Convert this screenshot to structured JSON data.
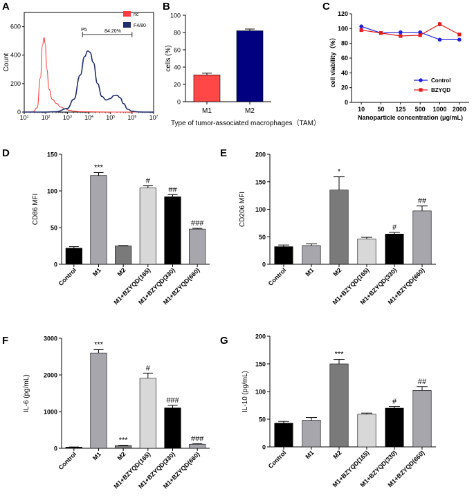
{
  "panel_labels": [
    "A",
    "B",
    "C",
    "D",
    "E",
    "F",
    "G"
  ],
  "chart_data": [
    {
      "panel": "A",
      "type": "line",
      "title": "",
      "xlabel": "",
      "ylabel": "Count",
      "x_ticks": [
        "10^1",
        "10^2",
        "10^3",
        "10^4",
        "10^5",
        "10^6",
        "10^7"
      ],
      "x_log_range": [
        1,
        7
      ],
      "ylim": [
        0,
        700
      ],
      "y_ticks": [
        0,
        200,
        400,
        600
      ],
      "gate_label": "P5",
      "gate_value": "84.20%",
      "gate_range_log": [
        3.7,
        6.0
      ],
      "series": [
        {
          "name": "nc",
          "color": "#ff3b3b",
          "x": [
            1.0,
            1.4,
            1.6,
            1.75,
            1.85,
            1.92,
            1.97,
            2.05,
            2.15,
            2.3,
            2.5,
            2.7,
            2.9,
            3.1,
            3.3,
            3.6,
            4.0,
            4.5,
            5.0,
            6.0,
            7.0
          ],
          "y": [
            0,
            2,
            30,
            240,
            470,
            525,
            480,
            300,
            160,
            90,
            60,
            35,
            22,
            12,
            6,
            3,
            2,
            1,
            0,
            0,
            0
          ]
        },
        {
          "name": "F4/80",
          "color": "#1f2d6b",
          "x": [
            1.0,
            2.0,
            2.5,
            3.0,
            3.3,
            3.6,
            3.8,
            3.95,
            4.05,
            4.2,
            4.4,
            4.6,
            4.8,
            5.0,
            5.15,
            5.3,
            5.45,
            5.6,
            5.8,
            6.0,
            6.3,
            6.6,
            7.0
          ],
          "y": [
            0,
            0,
            3,
            25,
            90,
            260,
            390,
            430,
            420,
            350,
            200,
            110,
            85,
            95,
            115,
            118,
            100,
            60,
            20,
            6,
            1,
            0,
            0
          ]
        }
      ]
    },
    {
      "panel": "B",
      "type": "bar",
      "title": "",
      "xlabel": "Type of tumor-associated macrophages（TAM）",
      "ylabel": "cells (%)",
      "categories": [
        "M1",
        "M2"
      ],
      "values": [
        31,
        82
      ],
      "errors": [
        2,
        2
      ],
      "colors": [
        "#ff4747",
        "#000080"
      ],
      "ylim": [
        0,
        100
      ],
      "y_ticks": [
        0,
        20,
        40,
        60,
        80,
        100
      ]
    },
    {
      "panel": "C",
      "type": "line",
      "title": "",
      "xlabel": "Nanoparticle concentration (μg/mL)",
      "ylabel": "cell viability（%）",
      "categories": [
        "10",
        "50",
        "125",
        "500",
        "1000",
        "2000"
      ],
      "ylim": [
        0,
        120
      ],
      "y_ticks": [
        0,
        20,
        40,
        60,
        80,
        100,
        120
      ],
      "series": [
        {
          "name": "Control",
          "color": "#1f1fd8",
          "marker": "circle",
          "values": [
            103,
            94,
            95,
            95,
            85,
            85
          ],
          "errors": [
            1,
            1,
            1,
            1,
            1,
            1
          ]
        },
        {
          "name": "BZYQD",
          "color": "#e01b1b",
          "marker": "square",
          "values": [
            98,
            94,
            90,
            91,
            106,
            92
          ],
          "errors": [
            1,
            1,
            1,
            1,
            3,
            1
          ]
        }
      ]
    },
    {
      "panel": "D",
      "type": "bar",
      "title": "",
      "xlabel": "",
      "ylabel": "CD86 MFI",
      "categories": [
        "Control",
        "M1",
        "M2",
        "M1+BZYQD(165)",
        "M1+BZYQD(330)",
        "M1+BZYQD(660)"
      ],
      "values": [
        22,
        121,
        25,
        104,
        92,
        48
      ],
      "errors": [
        2,
        4,
        0.5,
        3,
        3,
        1
      ],
      "colors": [
        "#000000",
        "#a6a6ac",
        "#7a7a7a",
        "#d8d8d8",
        "#000000",
        "#a6a6ac"
      ],
      "annotations": [
        "",
        "***",
        "",
        "#",
        "##",
        "###"
      ],
      "ylim": [
        0,
        150
      ],
      "y_ticks": [
        0,
        50,
        100,
        150
      ]
    },
    {
      "panel": "E",
      "type": "bar",
      "title": "",
      "xlabel": "",
      "ylabel": "CD206 MFI",
      "categories": [
        "Control",
        "M1",
        "M2",
        "M1+BZYQD(165)",
        "M1+BZYQD(330)",
        "M1+BZYQD(660)"
      ],
      "values": [
        32,
        34,
        135,
        46,
        55,
        97
      ],
      "errors": [
        3,
        3,
        24,
        3,
        3,
        9
      ],
      "colors": [
        "#000000",
        "#a6a6ac",
        "#7a7a7a",
        "#d8d8d8",
        "#000000",
        "#a6a6ac"
      ],
      "annotations": [
        "",
        "",
        "*",
        "",
        "#",
        "##"
      ],
      "ylim": [
        0,
        200
      ],
      "y_ticks": [
        0,
        50,
        100,
        150,
        200
      ]
    },
    {
      "panel": "F",
      "type": "bar",
      "title": "",
      "xlabel": "",
      "ylabel": "IL-6 (pg/mL)",
      "categories": [
        "Control",
        "M1",
        "M2",
        "M1+BZYQD(165)",
        "M1+BZYQD(330)",
        "M1+BZYQD(660)"
      ],
      "values": [
        30,
        2600,
        75,
        1910,
        1100,
        110
      ],
      "errors": [
        5,
        90,
        10,
        140,
        70,
        15
      ],
      "colors": [
        "#000000",
        "#a6a6ac",
        "#7a7a7a",
        "#d8d8d8",
        "#000000",
        "#a6a6ac"
      ],
      "annotations": [
        "",
        "***",
        "***",
        "#",
        "###",
        "###"
      ],
      "ylim": [
        0,
        3000
      ],
      "y_ticks": [
        0,
        1000,
        2000,
        3000
      ]
    },
    {
      "panel": "G",
      "type": "bar",
      "title": "",
      "xlabel": "",
      "ylabel": "IL-10 (pg/mL)",
      "categories": [
        "Control",
        "M1",
        "M2",
        "M1+BZYQD(165)",
        "M1+BZYQD(330)",
        "M1+BZYQD(660)"
      ],
      "values": [
        43,
        48,
        150,
        59,
        70,
        102
      ],
      "errors": [
        3,
        5,
        8,
        2,
        3,
        7
      ],
      "colors": [
        "#000000",
        "#a6a6ac",
        "#7a7a7a",
        "#d8d8d8",
        "#000000",
        "#a6a6ac"
      ],
      "annotations": [
        "",
        "",
        "***",
        "",
        "#",
        "##"
      ],
      "ylim": [
        0,
        200
      ],
      "y_ticks": [
        0,
        50,
        100,
        150,
        200
      ]
    }
  ]
}
